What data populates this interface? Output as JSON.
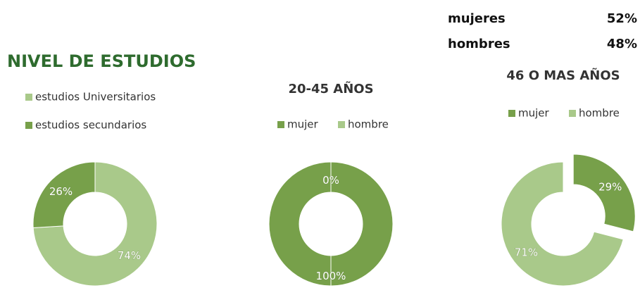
{
  "summary": {
    "rows": [
      [
        "mujeres",
        "52%"
      ],
      [
        "hombres",
        "48%"
      ]
    ]
  },
  "chart_data": [
    {
      "type": "donut",
      "title": "NIVEL DE ESTUDIOS",
      "categories": [
        "estudios Universitarios",
        "estudios secundarios"
      ],
      "values": [
        74,
        26
      ],
      "value_labels": [
        "74%",
        "26%"
      ],
      "colors": [
        "#a9c98a",
        "#77a04a"
      ]
    },
    {
      "type": "donut",
      "title": "20-45 AÑOS",
      "categories": [
        "mujer",
        "hombre"
      ],
      "values": [
        100,
        0
      ],
      "value_labels": [
        "100%",
        "0%"
      ],
      "colors": [
        "#77a04a",
        "#a9c98a"
      ]
    },
    {
      "type": "donut",
      "title": "46 O MAS AÑOS",
      "categories": [
        "mujer",
        "hombre"
      ],
      "values": [
        29,
        71
      ],
      "value_labels": [
        "29%",
        "71%"
      ],
      "colors": [
        "#77a04a",
        "#a9c98a"
      ],
      "exploded": [
        0
      ]
    }
  ]
}
